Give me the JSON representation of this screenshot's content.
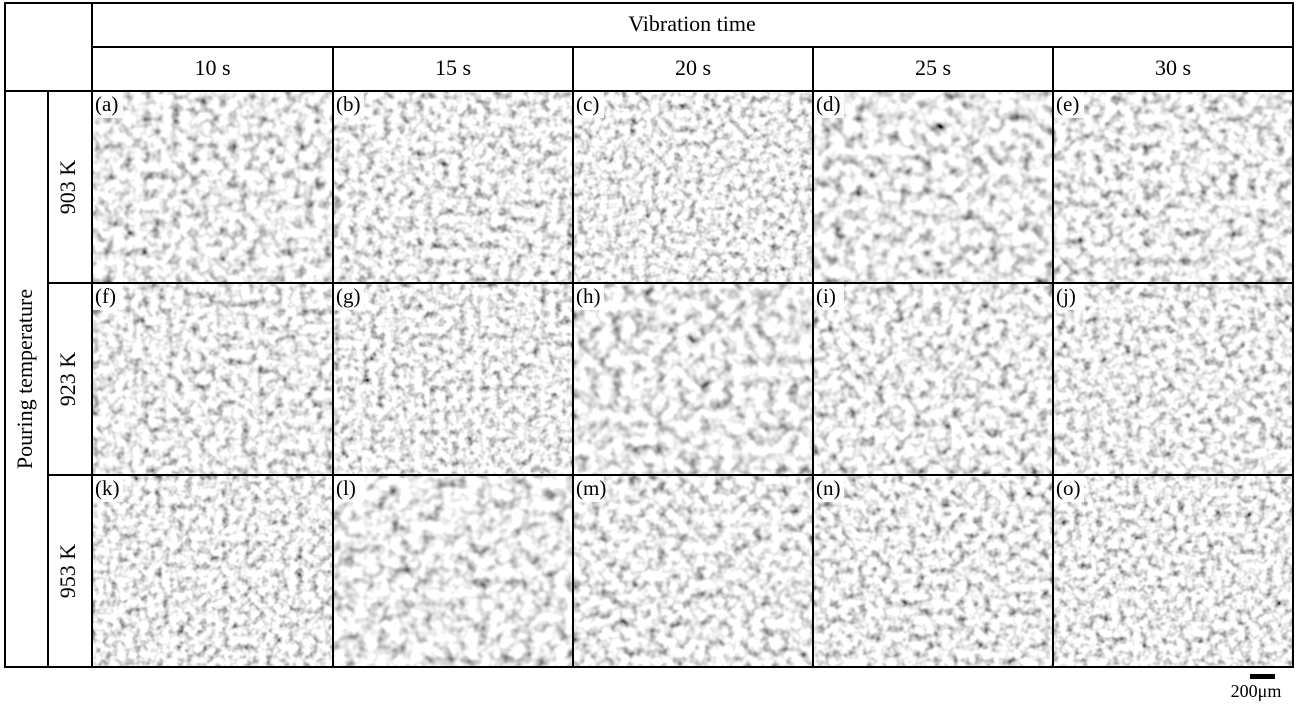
{
  "header": {
    "title": "Vibration time",
    "columns": [
      "10 s",
      "15 s",
      "20 s",
      "25 s",
      "30 s"
    ]
  },
  "row_header": {
    "title": "Pouring temperature",
    "rows": [
      "903 K",
      "923 K",
      "953 K"
    ]
  },
  "panels": [
    [
      "(a)",
      "(b)",
      "(c)",
      "(d)",
      "(e)"
    ],
    [
      "(f)",
      "(g)",
      "(h)",
      "(i)",
      "(j)"
    ],
    [
      "(k)",
      "(l)",
      "(m)",
      "(n)",
      "(o)"
    ]
  ],
  "scale_bar": {
    "label": "200μm"
  }
}
